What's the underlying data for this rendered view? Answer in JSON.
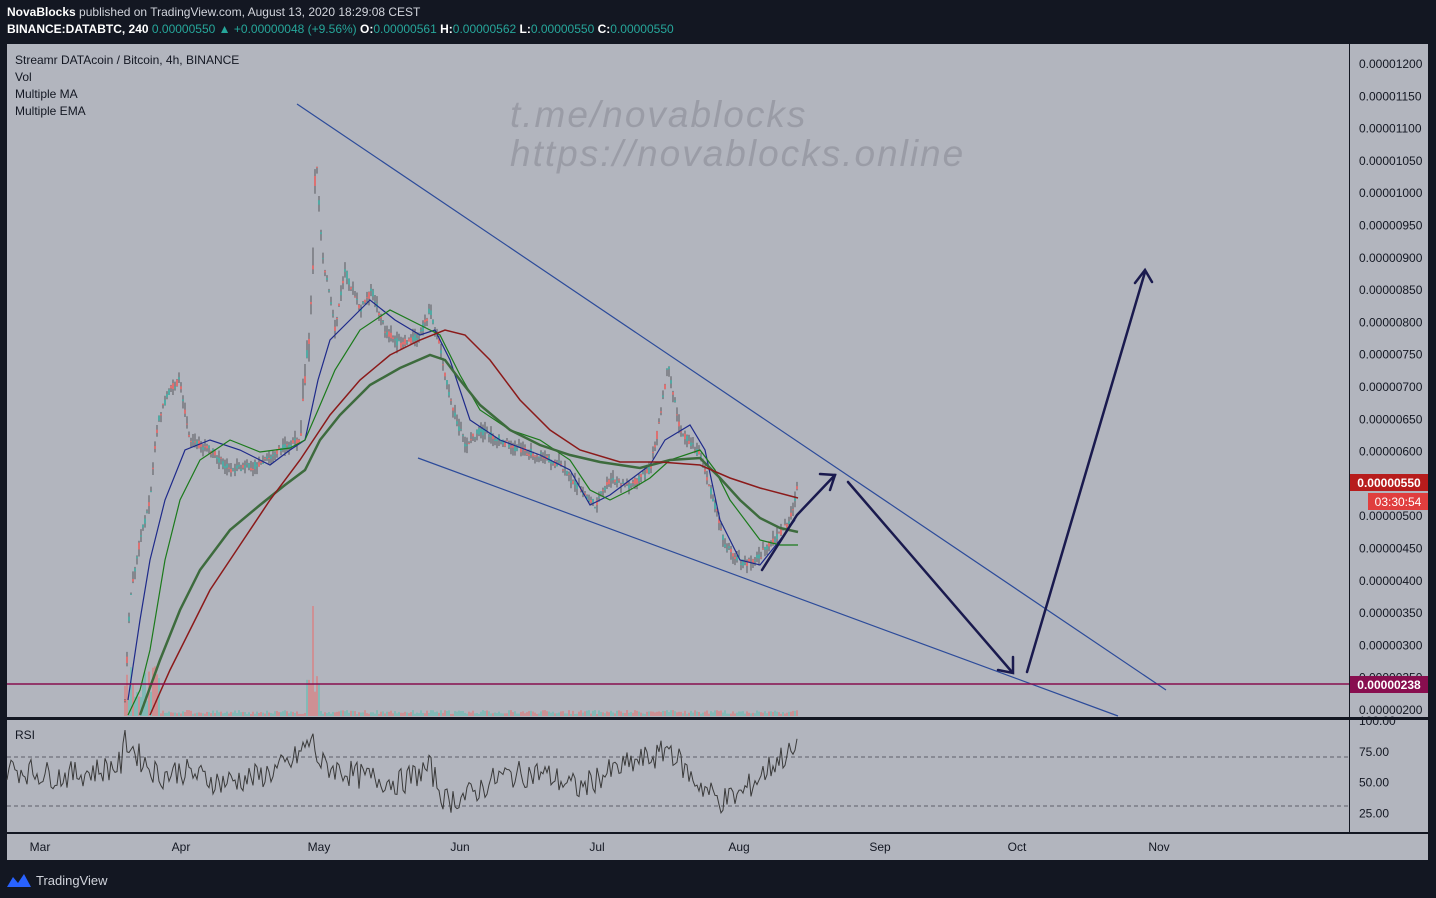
{
  "header": {
    "author": "NovaBlocks",
    "published_text": "published on TradingView.com, August 13, 2020 18:29:08 CEST",
    "symbol": "BINANCE:DATABTC, 240",
    "last": "0.00000550",
    "change": "+0.00000048 (+9.56%)",
    "o_label": "O:",
    "o_value": "0.00000561",
    "h_label": "H:",
    "h_value": "0.00000562",
    "l_label": "L:",
    "l_value": "0.00000550",
    "c_label": "C:",
    "c_value": "0.00000550"
  },
  "legend": [
    "Streamr DATAcoin / Bitcoin, 4h, BINANCE",
    "Vol",
    "Multiple MA",
    "Multiple EMA"
  ],
  "watermark": [
    "t.me/novablocks",
    "https://novablocks.online"
  ],
  "price_axis": {
    "ticks": [
      "0.00001200",
      "0.00001150",
      "0.00001100",
      "0.00001050",
      "0.00001000",
      "0.00000950",
      "0.00000900",
      "0.00000850",
      "0.00000800",
      "0.00000750",
      "0.00000700",
      "0.00000650",
      "0.00000600",
      "0.00000550",
      "0.00000500",
      "0.00000450",
      "0.00000400",
      "0.00000350",
      "0.00000300",
      "0.00000250",
      "0.00000200"
    ],
    "last_price_label": "0.00000550",
    "countdown": "03:30:54",
    "support_label": "0.00000238"
  },
  "rsi": {
    "title": "RSI",
    "ticks": [
      "100.00",
      "75.00",
      "50.00",
      "25.00"
    ]
  },
  "time_axis": [
    "Mar",
    "Apr",
    "May",
    "Jun",
    "Jul",
    "Aug",
    "Sep",
    "Oct",
    "Nov"
  ],
  "footer": {
    "brand": "TradingView"
  },
  "colors": {
    "background": "#131722",
    "chart_bg": "#b2b5be",
    "up": "#26a69a",
    "down": "#ef5350",
    "trendline": "#2962ff",
    "arrow": "#1a1a4e",
    "support": "#880e4f",
    "last_price": "#b71c1c"
  },
  "chart_data": {
    "type": "line",
    "title": "Streamr DATAcoin / Bitcoin, 4h, BINANCE",
    "x_label_ticks": [
      "Mar",
      "Apr",
      "May",
      "Jun",
      "Jul",
      "Aug",
      "Sep",
      "Oct",
      "Nov"
    ],
    "ylim": [
      1.8e-06,
      1.23e-05
    ],
    "series": [
      {
        "name": "Streamr DATAcoin / Bitcoin",
        "x": [
          "2020-03-20",
          "2020-03-23",
          "2020-03-28",
          "2020-04-10",
          "2020-04-20",
          "2020-04-30",
          "2020-05-02",
          "2020-05-08",
          "2020-05-15",
          "2020-05-24",
          "2020-05-30",
          "2020-06-07",
          "2020-06-15",
          "2020-06-22",
          "2020-06-30",
          "2020-07-07",
          "2020-07-15",
          "2020-07-17",
          "2020-07-24",
          "2020-07-31",
          "2020-08-04",
          "2020-08-10",
          "2020-08-13"
        ],
        "values": [
          2.1e-06,
          5e-06,
          6.8e-06,
          5.6e-06,
          5.8e-06,
          1.1e-05,
          9e-06,
          8e-06,
          8.3e-06,
          7.7e-06,
          8e-06,
          6e-06,
          6.2e-06,
          5.8e-06,
          5.2e-06,
          5.5e-06,
          6.2e-06,
          7.4e-06,
          6e-06,
          4.4e-06,
          4.3e-06,
          5e-06,
          5.5e-06
        ]
      }
    ],
    "annotations": {
      "support_level": 2.38e-06,
      "rsi_bands": [
        70,
        30
      ]
    }
  }
}
